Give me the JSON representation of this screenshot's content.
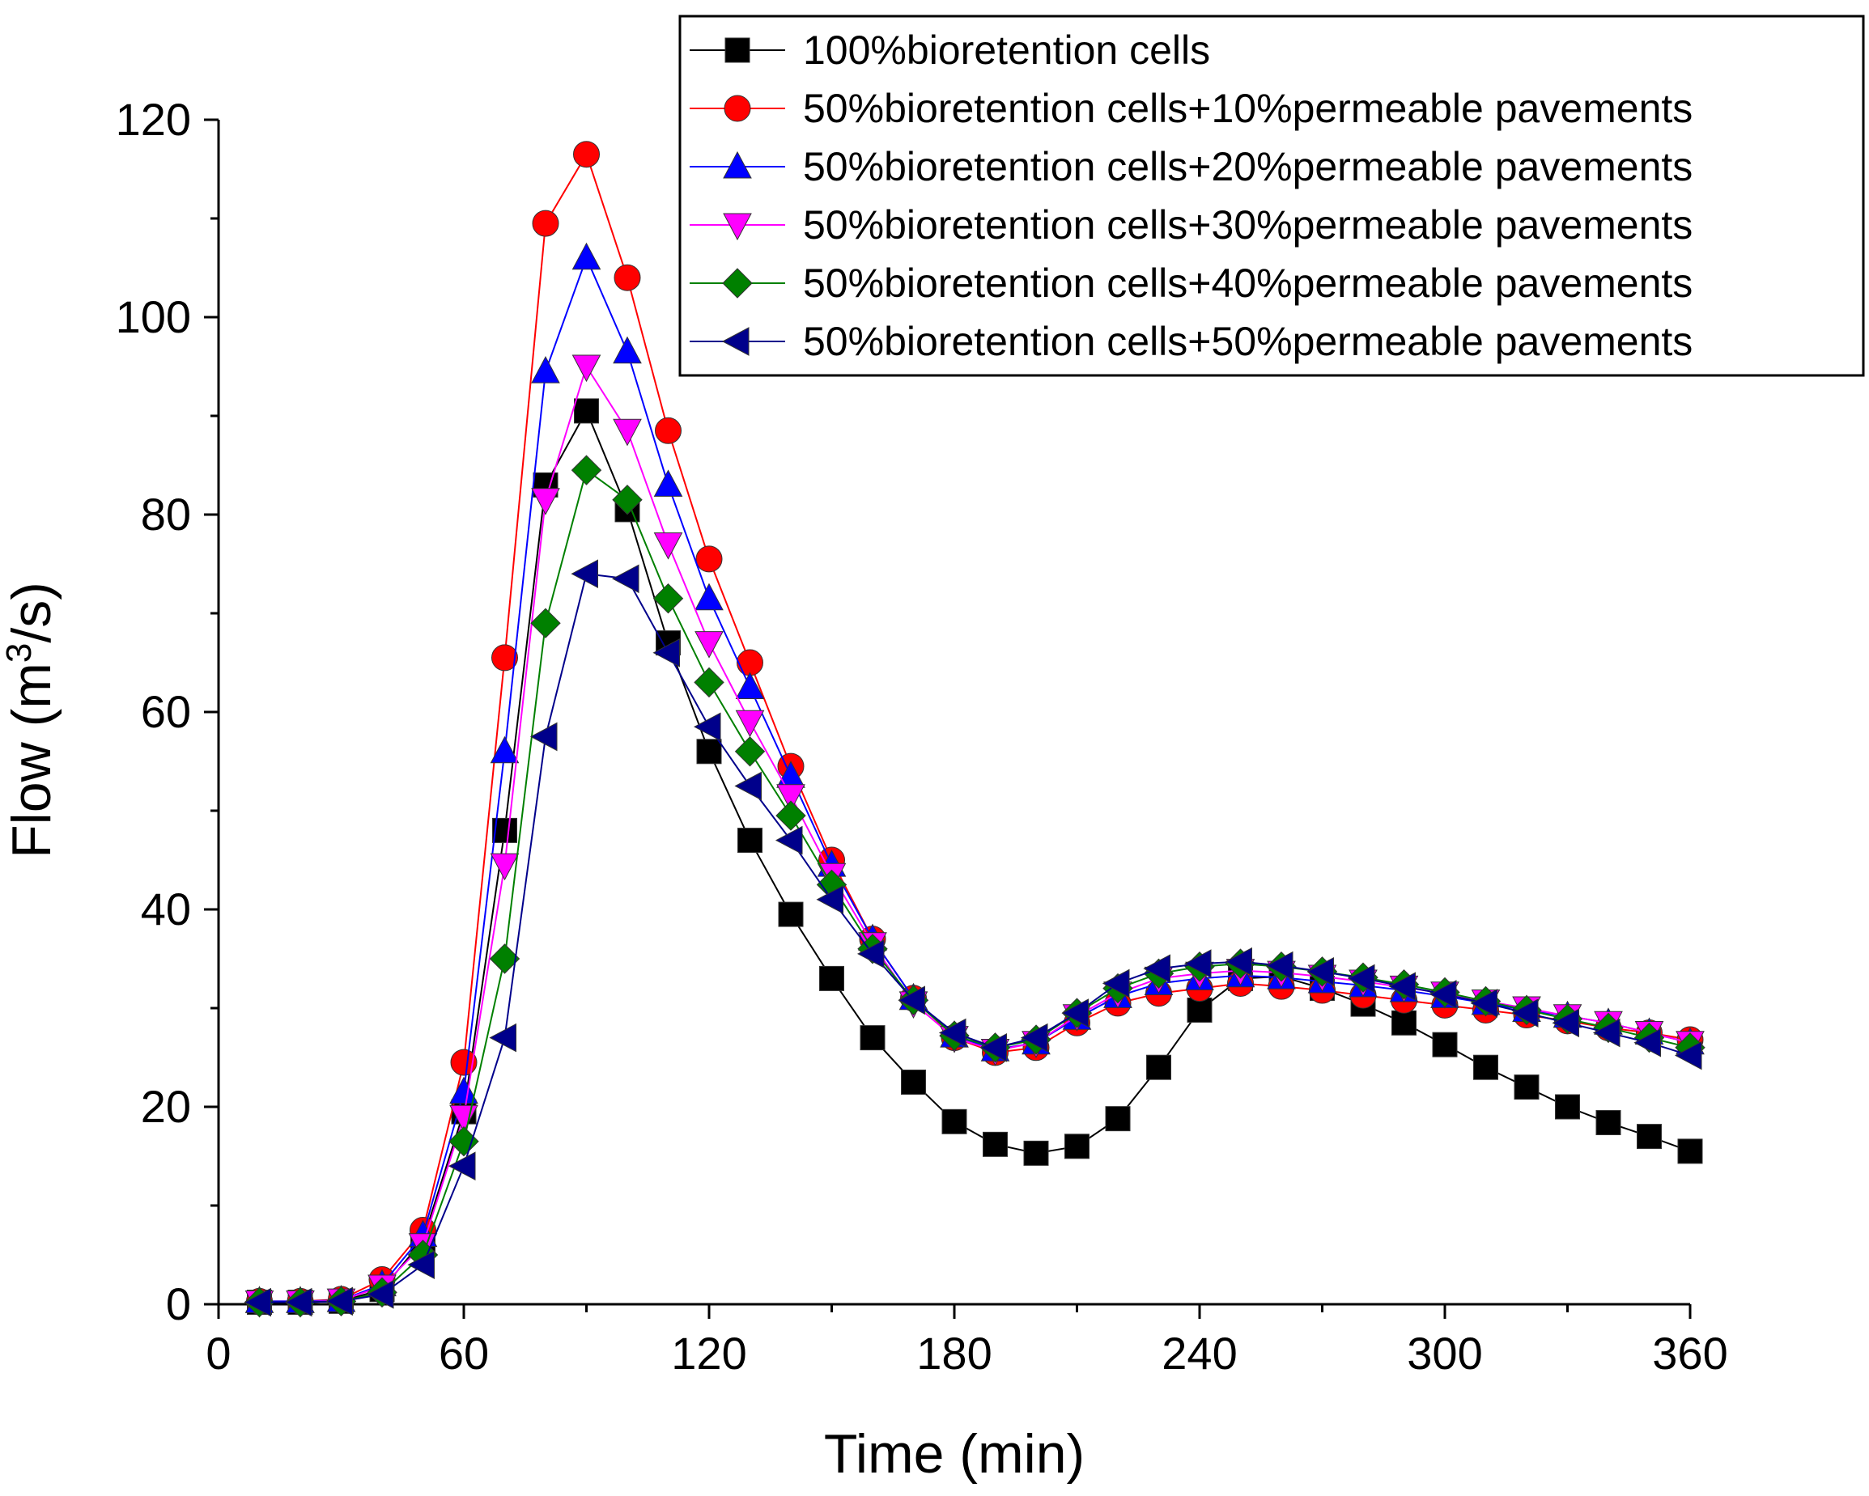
{
  "chart_data": {
    "type": "line",
    "title": "",
    "xlabel": "Time (min)",
    "ylabel_prefix": "Flow (m",
    "ylabel_sup": "3",
    "ylabel_suffix": "/s)",
    "xlim": [
      0,
      360
    ],
    "ylim": [
      0,
      120
    ],
    "xticks": [
      0,
      60,
      120,
      180,
      240,
      300,
      360
    ],
    "yticks": [
      0,
      20,
      40,
      60,
      80,
      100,
      120
    ],
    "grid": false,
    "legend_position": "top-right",
    "x": [
      10,
      20,
      30,
      40,
      50,
      60,
      70,
      80,
      90,
      100,
      110,
      120,
      130,
      140,
      150,
      160,
      170,
      180,
      190,
      200,
      210,
      220,
      230,
      240,
      250,
      260,
      270,
      280,
      290,
      300,
      310,
      320,
      330,
      340,
      350,
      360
    ],
    "series": [
      {
        "name": "100%bioretention cells",
        "color": "#000000",
        "marker": "square",
        "values": [
          0.2,
          0.2,
          0.3,
          1.5,
          6.5,
          19.5,
          48,
          83,
          90.5,
          80.5,
          67,
          56,
          47,
          39.5,
          33,
          27,
          22.5,
          18.5,
          16.2,
          15.3,
          16,
          18.8,
          24,
          29.8,
          33,
          33.2,
          32,
          30.4,
          28.5,
          26.3,
          24,
          22,
          20,
          18.4,
          17,
          15.5
        ]
      },
      {
        "name": "50%bioretention cells+10%permeable pavements",
        "color": "#ff0000",
        "marker": "circle",
        "values": [
          0.3,
          0.3,
          0.5,
          2.5,
          7.5,
          24.5,
          65.5,
          109.5,
          116.5,
          104,
          88.5,
          75.5,
          65,
          54.5,
          45,
          37,
          31,
          27,
          25.5,
          26,
          28.5,
          30.5,
          31.5,
          32,
          32.5,
          32.2,
          31.8,
          31.3,
          30.8,
          30.3,
          29.8,
          29.3,
          28.7,
          28,
          27.5,
          26.8
        ]
      },
      {
        "name": "50%bioretention cells+20%permeable pavements",
        "color": "#0000ff",
        "marker": "triangle-up",
        "values": [
          0.3,
          0.3,
          0.4,
          2,
          7,
          21.5,
          56,
          94.5,
          106,
          96.5,
          83,
          71.5,
          62.5,
          53.5,
          44.5,
          37,
          31,
          27.2,
          25.8,
          26.5,
          29,
          31.2,
          32.5,
          33,
          33.3,
          33.1,
          32.7,
          32.3,
          31.8,
          31.2,
          30.5,
          29.8,
          29.2,
          28.5,
          27.5,
          26.5
        ]
      },
      {
        "name": "50%bioretention cells+30%permeable pavements",
        "color": "#ff00ff",
        "marker": "triangle-down",
        "values": [
          0.2,
          0.2,
          0.4,
          1.8,
          6,
          19,
          44.5,
          81.5,
          95,
          88.5,
          77,
          67,
          59,
          51.5,
          43.5,
          36.5,
          30.5,
          27,
          25.7,
          26.5,
          29.2,
          31.5,
          33,
          33.5,
          33.8,
          33.6,
          33.2,
          32.7,
          32.1,
          31.5,
          30.7,
          30,
          29.2,
          28.5,
          27.5,
          26.5
        ]
      },
      {
        "name": "50%bioretention cells+40%permeable pavements",
        "color": "#008000",
        "marker": "diamond",
        "values": [
          0.2,
          0.2,
          0.3,
          1.2,
          5,
          16.5,
          35,
          69,
          84.5,
          81.5,
          71.5,
          63,
          56,
          49.5,
          42.5,
          36,
          30.8,
          27.2,
          26,
          26.8,
          29.5,
          32,
          33.5,
          34.2,
          34.5,
          34.2,
          33.7,
          33.1,
          32.4,
          31.6,
          30.7,
          29.8,
          28.9,
          28,
          27,
          26
        ]
      },
      {
        "name": "50%bioretention cells+50%permeable pavements",
        "color": "#00008b",
        "marker": "triangle-left",
        "values": [
          0.2,
          0.2,
          0.3,
          1,
          4,
          14,
          27,
          57.5,
          74,
          73.5,
          66,
          58.5,
          52.5,
          47,
          41,
          35.5,
          30.8,
          27.5,
          26,
          27,
          29.5,
          32.5,
          34,
          34.5,
          34.7,
          34.3,
          33.7,
          33,
          32.2,
          31.4,
          30.5,
          29.5,
          28.5,
          27.5,
          26.5,
          25.2
        ]
      }
    ]
  }
}
